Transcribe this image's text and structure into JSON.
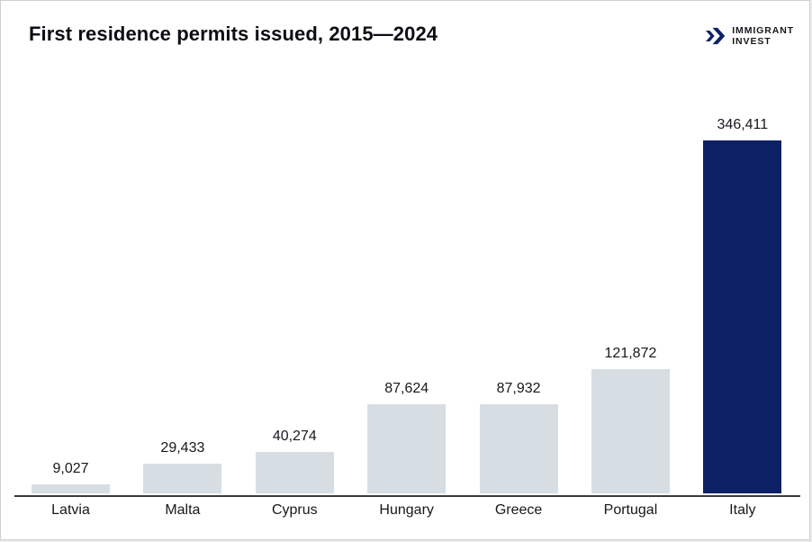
{
  "header": {
    "logo": {
      "line1": "IMMIGRANT",
      "line2": "INVEST",
      "icon": "double-chevron-right-icon",
      "icon_color": "#0e2167",
      "text_color": "#17181d"
    }
  },
  "chart_data": {
    "type": "bar",
    "title": "First residence permits issued, 2015—2024",
    "categories": [
      "Latvia",
      "Malta",
      "Cyprus",
      "Hungary",
      "Greece",
      "Portugal",
      "Italy"
    ],
    "values": [
      9027,
      29433,
      40274,
      87624,
      87932,
      121872,
      346411
    ],
    "value_labels": [
      "9,027",
      "29,433",
      "40,274",
      "87,624",
      "87,932",
      "121,872",
      "346,411"
    ],
    "xlabel": "",
    "ylabel": "",
    "ylim": [
      0,
      346411
    ],
    "grid": false,
    "legend": false,
    "bar_color_default": "#d6dee4",
    "bar_color_highlight": "#0e2167",
    "highlight_category": "Italy",
    "axis_color": "#3a3a3a",
    "label_color": "#17181c",
    "title_color": "#0d0e13",
    "background_color": "#ffffff"
  }
}
